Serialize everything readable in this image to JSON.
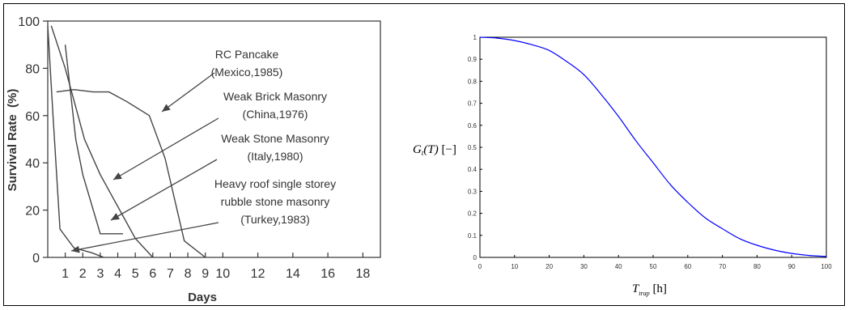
{
  "chart_data": [
    {
      "type": "line",
      "xlabel": "Days",
      "ylabel": "Survival Rate  (%)",
      "xlim": [
        0,
        19
      ],
      "ylim": [
        0,
        100
      ],
      "xticks": [
        1,
        2,
        3,
        4,
        5,
        6,
        7,
        8,
        9,
        10,
        12,
        14,
        16,
        18
      ],
      "yticks": [
        0,
        20,
        40,
        60,
        80,
        100
      ],
      "series": [
        {
          "values": [
            [
              0.0,
              98
            ],
            [
              0.3,
              60
            ],
            [
              0.7,
              12
            ],
            [
              1.5,
              4
            ],
            [
              2.5,
              2
            ],
            [
              3.2,
              0
            ]
          ]
        },
        {
          "values": [
            [
              1.0,
              90
            ],
            [
              1.6,
              50
            ],
            [
              2.0,
              35
            ],
            [
              3.0,
              10
            ],
            [
              4.3,
              10
            ]
          ]
        },
        {
          "values": [
            [
              0.2,
              98
            ],
            [
              1.0,
              80
            ],
            [
              2.1,
              50
            ],
            [
              3.0,
              35
            ],
            [
              5.0,
              8
            ],
            [
              6.0,
              0
            ]
          ]
        },
        {
          "values": [
            [
              0.5,
              70
            ],
            [
              1.5,
              71
            ],
            [
              2.6,
              70
            ],
            [
              3.5,
              70
            ],
            [
              4.5,
              66
            ],
            [
              5.8,
              60
            ],
            [
              6.7,
              42
            ],
            [
              7.8,
              7
            ],
            [
              9.0,
              0
            ]
          ]
        }
      ],
      "annotations": [
        {
          "lines": [
            "RC Pancake",
            "(Mexico,1985)"
          ]
        },
        {
          "lines": [
            "Weak Brick Masonry",
            "(China,1976)"
          ]
        },
        {
          "lines": [
            "Weak Stone Masonry",
            "(Italy,1980)"
          ]
        },
        {
          "lines": [
            "Heavy roof single storey",
            "rubble stone masonry",
            "(Turkey,1983)"
          ]
        }
      ]
    },
    {
      "type": "line",
      "ylabel": "G_t(T) [−]",
      "xlabel": "T_trap [h]",
      "xlim": [
        0,
        100
      ],
      "ylim": [
        0,
        1
      ],
      "xticks": [
        0,
        10,
        20,
        30,
        40,
        50,
        60,
        70,
        80,
        90,
        100
      ],
      "yticks": [
        0,
        0.1,
        0.2,
        0.3,
        0.4,
        0.5,
        0.6,
        0.7,
        0.8,
        0.9,
        1
      ],
      "series": [
        {
          "color": "#0000ff",
          "values": [
            [
              0,
              1.0
            ],
            [
              5,
              0.996
            ],
            [
              10,
              0.985
            ],
            [
              15,
              0.966
            ],
            [
              20,
              0.94
            ],
            [
              25,
              0.89
            ],
            [
              30,
              0.83
            ],
            [
              35,
              0.74
            ],
            [
              40,
              0.64
            ],
            [
              45,
              0.53
            ],
            [
              50,
              0.43
            ],
            [
              55,
              0.33
            ],
            [
              60,
              0.25
            ],
            [
              65,
              0.18
            ],
            [
              70,
              0.13
            ],
            [
              75,
              0.085
            ],
            [
              80,
              0.055
            ],
            [
              85,
              0.033
            ],
            [
              90,
              0.018
            ],
            [
              95,
              0.009
            ],
            [
              100,
              0.004
            ]
          ]
        }
      ]
    }
  ]
}
